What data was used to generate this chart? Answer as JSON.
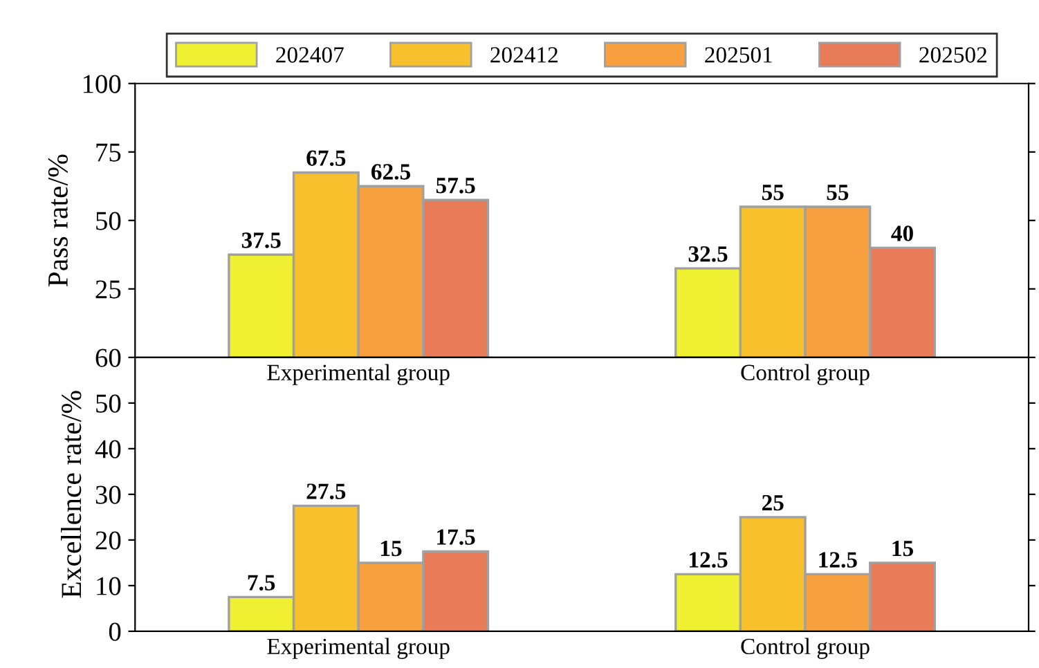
{
  "chart_data": [
    {
      "type": "bar",
      "ylabel": "Pass rate/%",
      "categories": [
        "Experimental group",
        "Control group"
      ],
      "ylim": [
        0,
        100
      ],
      "yticks": [
        25,
        50,
        75,
        100
      ],
      "data_labels": true,
      "legend": "top",
      "grid": false,
      "series": [
        {
          "name": "202407",
          "color": "#f0f032",
          "values": [
            37.5,
            32.5
          ]
        },
        {
          "name": "202412",
          "color": "#f8c02c",
          "values": [
            67.5,
            55
          ]
        },
        {
          "name": "202501",
          "color": "#f8a040",
          "values": [
            62.5,
            55
          ]
        },
        {
          "name": "202502",
          "color": "#e87c58",
          "values": [
            57.5,
            40
          ]
        }
      ]
    },
    {
      "type": "bar",
      "ylabel": "Excellence rate/%",
      "categories": [
        "Experimental group",
        "Control group"
      ],
      "ylim": [
        0,
        60
      ],
      "yticks": [
        0,
        10,
        20,
        30,
        40,
        50,
        60
      ],
      "data_labels": true,
      "legend": false,
      "grid": false,
      "series": [
        {
          "name": "202407",
          "color": "#f0f032",
          "values": [
            7.5,
            12.5
          ]
        },
        {
          "name": "202412",
          "color": "#f8c02c",
          "values": [
            27.5,
            25
          ]
        },
        {
          "name": "202501",
          "color": "#f8a040",
          "values": [
            15,
            12.5
          ]
        },
        {
          "name": "202502",
          "color": "#e87c58",
          "values": [
            17.5,
            15
          ]
        }
      ]
    }
  ]
}
